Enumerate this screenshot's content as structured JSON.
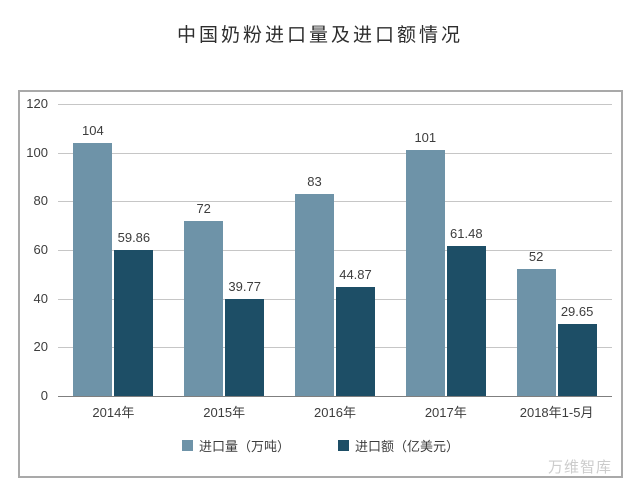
{
  "page": {
    "title": "中国奶粉进口量及进口额情况",
    "watermark": "万维智库"
  },
  "chart_data": {
    "type": "bar",
    "title": "中国奶粉进口量及进口额情况",
    "categories": [
      "2014年",
      "2015年",
      "2016年",
      "2017年",
      "2018年1-5月"
    ],
    "series": [
      {
        "name": "进口量（万吨）",
        "color": "#6e93a8",
        "values": [
          104,
          72,
          83,
          101,
          52
        ]
      },
      {
        "name": "进口额（亿美元）",
        "color": "#1d4e66",
        "values": [
          59.86,
          39.77,
          44.87,
          61.48,
          29.65
        ]
      }
    ],
    "ylabel": "",
    "xlabel": "",
    "ylim": [
      0,
      120
    ],
    "ytick_step": 20,
    "grid": true,
    "legend_position": "bottom",
    "colors": {
      "gridline": "#c6c6c6",
      "baseline": "#7f7f7f",
      "panel_border": "#a9a9a9",
      "text": "#3d3d3d",
      "title_text": "#2e2e2e",
      "watermark_text": "#cccccc",
      "background": "#ffffff"
    }
  }
}
